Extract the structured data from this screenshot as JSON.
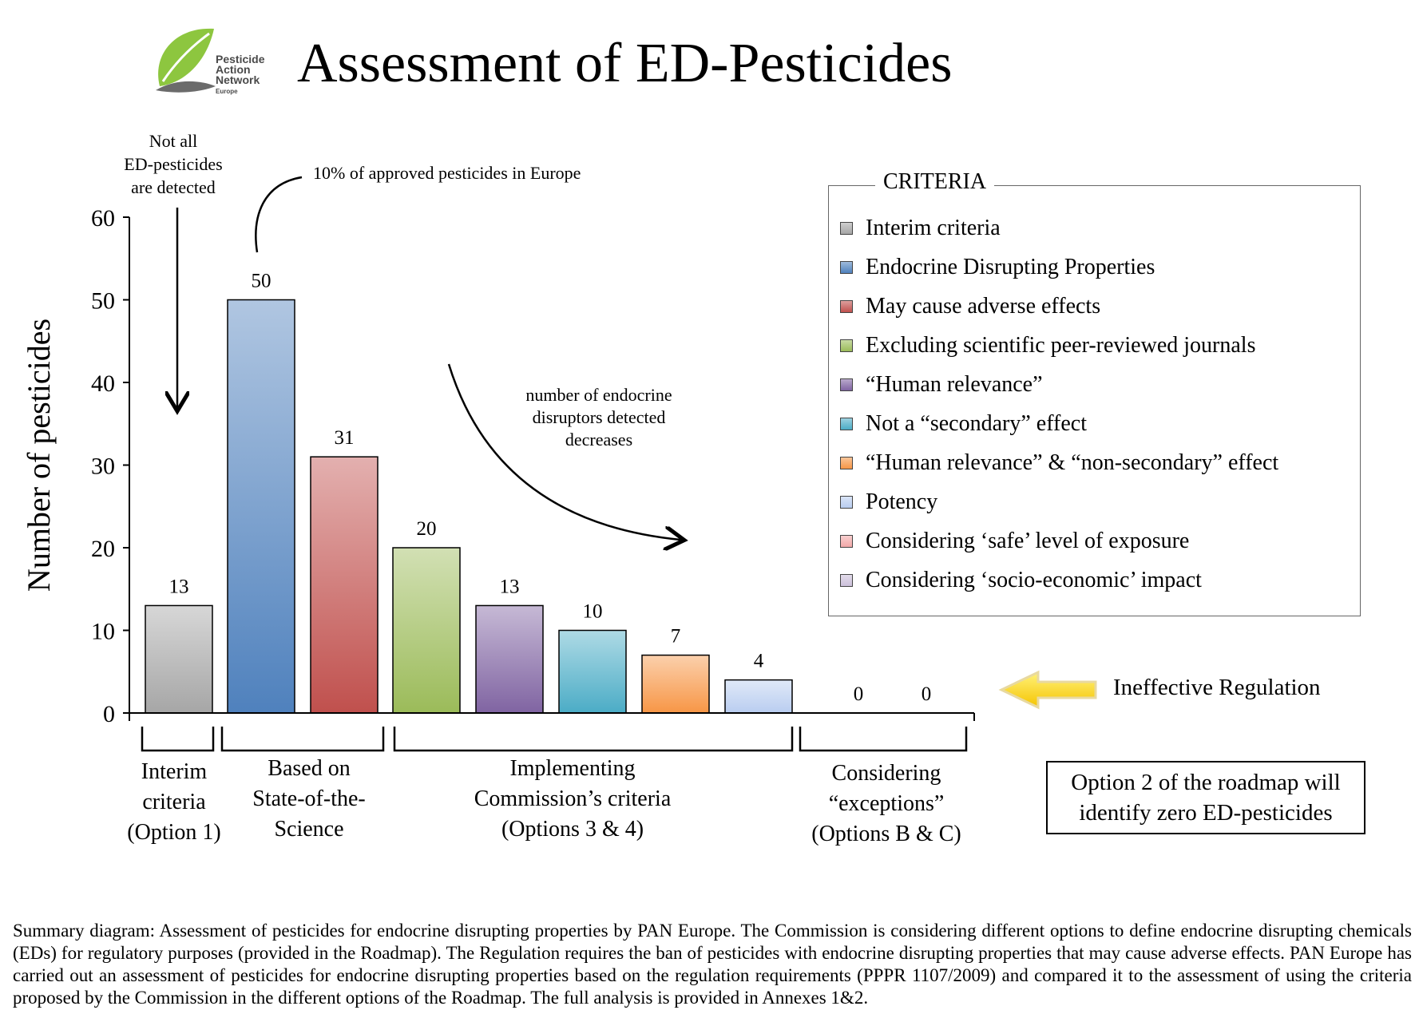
{
  "header": {
    "title": "Assessment of ED-Pesticides",
    "logo_lines": [
      "Pesticide",
      "Action",
      "Network"
    ],
    "logo_sub": "Europe"
  },
  "chart_data": {
    "type": "bar",
    "title": "Assessment of ED-Pesticides",
    "ylabel": "Number of pesticides",
    "ylim": [
      0,
      60
    ],
    "yticks": [
      0,
      10,
      20,
      30,
      40,
      50,
      60
    ],
    "grid": false,
    "categories": [
      "Interim criteria",
      "Endocrine Disrupting Properties",
      "May cause adverse effects",
      "Excluding scientific peer-reviewed journals",
      "“Human relevance”",
      "Not a “secondary” effect",
      "“Human relevance” & “non-secondary” effect",
      "Potency",
      "Considering ‘safe’ level of exposure",
      "Considering ‘socio-economic’ impact"
    ],
    "values": [
      13,
      50,
      31,
      20,
      13,
      10,
      7,
      4,
      0,
      0
    ],
    "colors": [
      "#a6a6a6",
      "#4f81bd",
      "#c0504d",
      "#9bbb59",
      "#8064a2",
      "#4bacc6",
      "#f79646",
      "#b9cdf0",
      "#f2a8a8",
      "#ccc0da"
    ],
    "legend_title": "CRITERIA",
    "legend_position": "top-right",
    "groups": [
      {
        "label": "Interim criteria (Option 1)",
        "lines": [
          "Interim",
          "criteria",
          "(Option 1)"
        ]
      },
      {
        "label": "Based on State-of-the-Science",
        "lines": [
          "Based on",
          "State-of-the-",
          "Science"
        ]
      },
      {
        "label": "Implementing Commission’s criteria (Options 3 & 4)",
        "lines": [
          "Implementing",
          "Commission’s criteria",
          "(Options 3 & 4)"
        ]
      },
      {
        "label": "Considering “exceptions” (Options B & C)",
        "lines": [
          "Considering",
          "“exceptions”",
          "(Options B & C)"
        ]
      }
    ],
    "annotations": {
      "not_detected": [
        "Not all",
        "ED-pesticides",
        "are detected"
      ],
      "ten_percent": "10% of approved pesticides in Europe",
      "decrease": [
        "number of endocrine",
        "disruptors detected",
        "decreases"
      ]
    }
  },
  "side_notes": {
    "ineffective": "Ineffective Regulation",
    "option_box": [
      "Option 2 of the roadmap will",
      "identify zero ED-pesticides"
    ]
  },
  "caption": "Summary diagram: Assessment of pesticides for endocrine disrupting properties by PAN Europe. The Commission is considering different options to define endocrine disrupting chemicals (EDs) for regulatory purposes (provided in the Roadmap). The Regulation requires the ban of pesticides with endocrine disrupting properties that may cause adverse effects. PAN Europe has carried out an assessment of pesticides for endocrine disrupting properties based on the regulation requirements (PPPR 1107/2009) and compared it to the assessment of using the criteria proposed by the Commission in the different options of the Roadmap. The full analysis is provided in Annexes 1&2."
}
